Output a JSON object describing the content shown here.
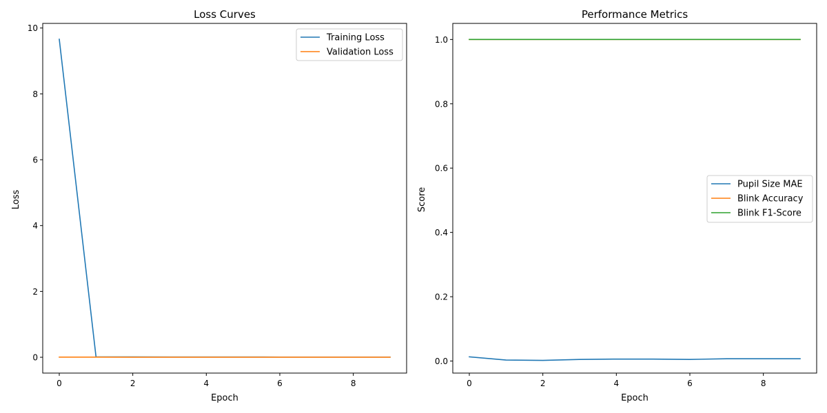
{
  "chart_data": [
    {
      "type": "line",
      "title": "Loss Curves",
      "xlabel": "Epoch",
      "ylabel": "Loss",
      "xlim": [
        -0.45,
        9.45
      ],
      "ylim": [
        -0.48,
        10.14
      ],
      "xticks": [
        0,
        2,
        4,
        6,
        8
      ],
      "yticks": [
        0,
        2,
        4,
        6,
        8,
        10
      ],
      "legend_position": "upper right",
      "grid": false,
      "x": [
        0,
        1,
        2,
        3,
        4,
        5,
        6,
        7,
        8,
        9
      ],
      "series": [
        {
          "name": "Training Loss",
          "color": "#1f77b4",
          "values": [
            9.66,
            0.012,
            0.009,
            0.008,
            0.007,
            0.007,
            0.006,
            0.006,
            0.006,
            0.006
          ]
        },
        {
          "name": "Validation Loss",
          "color": "#ff7f0e",
          "values": [
            0.004,
            0.004,
            0.003,
            0.003,
            0.003,
            0.003,
            0.003,
            0.003,
            0.003,
            0.003
          ]
        }
      ]
    },
    {
      "type": "line",
      "title": "Performance Metrics",
      "xlabel": "Epoch",
      "ylabel": "Score",
      "xlim": [
        -0.45,
        9.45
      ],
      "ylim": [
        -0.0375,
        1.05
      ],
      "xticks": [
        0,
        2,
        4,
        6,
        8
      ],
      "yticks": [
        0.0,
        0.2,
        0.4,
        0.6,
        0.8,
        1.0
      ],
      "legend_position": "center right",
      "grid": false,
      "x": [
        0,
        1,
        2,
        3,
        4,
        5,
        6,
        7,
        8,
        9
      ],
      "series": [
        {
          "name": "Pupil Size MAE",
          "color": "#1f77b4",
          "values": [
            0.013,
            0.003,
            0.002,
            0.005,
            0.006,
            0.006,
            0.005,
            0.007,
            0.007,
            0.007
          ]
        },
        {
          "name": "Blink Accuracy",
          "color": "#ff7f0e",
          "values": [
            1.0,
            1.0,
            1.0,
            1.0,
            1.0,
            1.0,
            1.0,
            1.0,
            1.0,
            1.0
          ]
        },
        {
          "name": "Blink F1-Score",
          "color": "#2ca02c",
          "values": [
            1.0,
            1.0,
            1.0,
            1.0,
            1.0,
            1.0,
            1.0,
            1.0,
            1.0,
            1.0
          ]
        }
      ]
    }
  ]
}
